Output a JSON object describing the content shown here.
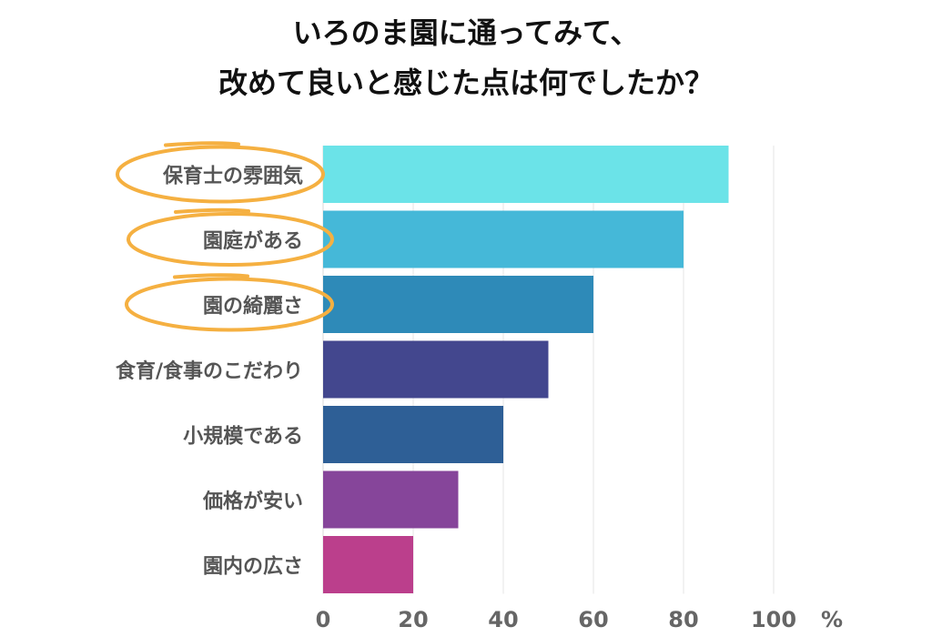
{
  "title": {
    "line1": "いろのま園に通ってみて、",
    "line2": "改めて良いと感じた点は何でしたか？"
  },
  "axis": {
    "unit": "%"
  },
  "highlight_color": "#f5b041",
  "chart_data": {
    "type": "bar",
    "orientation": "horizontal",
    "categories": [
      "保育士の雰囲気",
      "園庭がある",
      "園の綺麗さ",
      "食育/食事のこだわり",
      "小規模である",
      "価格が安い",
      "園内の広さ"
    ],
    "values": [
      90,
      80,
      60,
      50,
      40,
      30,
      20
    ],
    "colors": [
      "#6be3e8",
      "#45b8d8",
      "#2e8ab8",
      "#43478e",
      "#2e5f96",
      "#86459a",
      "#bb3f8c"
    ],
    "highlighted": [
      0,
      1,
      2
    ],
    "xlim": [
      0,
      100
    ],
    "xticks": [
      0,
      20,
      40,
      60,
      80,
      100
    ],
    "xlabel": "%",
    "grid": true,
    "legend": "none"
  }
}
